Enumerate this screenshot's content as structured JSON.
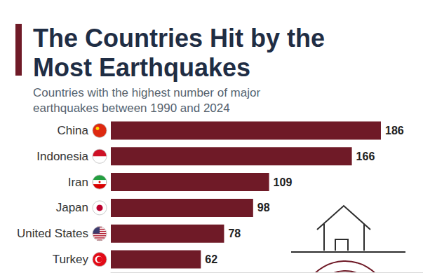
{
  "chart_data": {
    "type": "bar",
    "title": "The Countries Hit by the Most Earthquakes",
    "subtitle": "Countries with the highest number of major earthquakes between 1990 and 2024",
    "categories": [
      "China",
      "Indonesia",
      "Iran",
      "Japan",
      "United States",
      "Turkey"
    ],
    "values": [
      186,
      166,
      109,
      98,
      78,
      62
    ],
    "color": "#6f1a27",
    "orientation": "horizontal",
    "xlim": [
      0,
      215
    ],
    "grid": false,
    "data_labels": true,
    "tick_labels": "y"
  }
}
